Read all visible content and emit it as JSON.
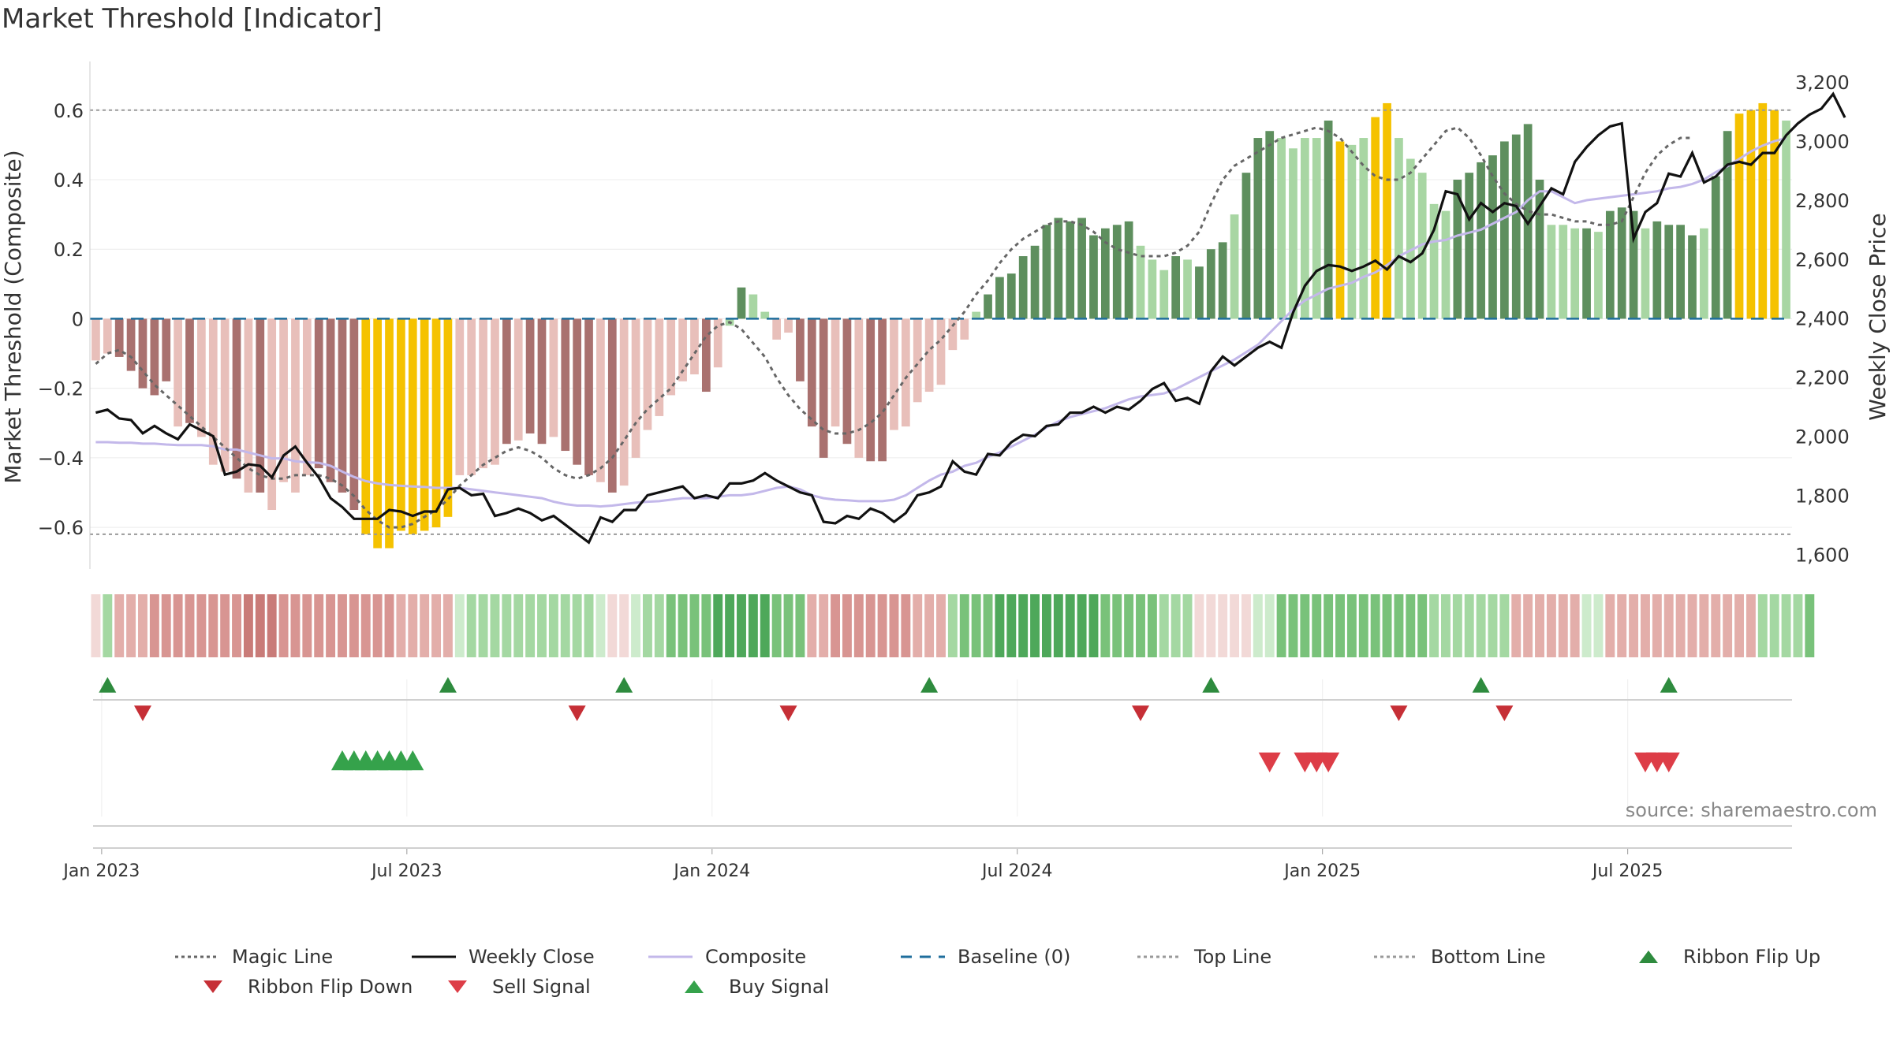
{
  "chart_data": {
    "type": "bar",
    "title": "Market Threshold [Indicator]",
    "ylabel_left": "Market Threshold (Composite)",
    "ylabel_right": "Weekly Close Price",
    "ylim_left": [
      -0.72,
      0.74
    ],
    "ylim_right": [
      1550,
      3270
    ],
    "yticks_left": [
      "0.6",
      "0.4",
      "0.2",
      "0",
      "−0.2",
      "−0.4",
      "−0.6"
    ],
    "yticks_right": [
      "3,200",
      "3,000",
      "2,800",
      "2,600",
      "2,400",
      "2,200",
      "2,000",
      "1,800",
      "1,600"
    ],
    "xticks": [
      "Jan 2023",
      "Jul 2023",
      "Jan 2024",
      "Jul 2024",
      "Jan 2025",
      "Jul 2025"
    ],
    "top_line": 0.6,
    "bottom_line": -0.62,
    "baseline": 0,
    "composite": [
      -0.12,
      -0.1,
      -0.11,
      -0.15,
      -0.2,
      -0.22,
      -0.18,
      -0.31,
      -0.3,
      -0.34,
      -0.42,
      -0.44,
      -0.46,
      -0.5,
      -0.5,
      -0.55,
      -0.47,
      -0.5,
      -0.45,
      -0.43,
      -0.47,
      -0.5,
      -0.55,
      -0.62,
      -0.66,
      -0.66,
      -0.61,
      -0.62,
      -0.61,
      -0.6,
      -0.57,
      -0.45,
      -0.45,
      -0.43,
      -0.42,
      -0.36,
      -0.35,
      -0.33,
      -0.36,
      -0.34,
      -0.38,
      -0.42,
      -0.45,
      -0.47,
      -0.5,
      -0.48,
      -0.4,
      -0.32,
      -0.28,
      -0.22,
      -0.18,
      -0.16,
      -0.21,
      -0.14,
      -0.02,
      0.09,
      0.07,
      0.02,
      -0.06,
      -0.04,
      -0.18,
      -0.31,
      -0.4,
      -0.31,
      -0.36,
      -0.4,
      -0.41,
      -0.41,
      -0.32,
      -0.31,
      -0.24,
      -0.21,
      -0.19,
      -0.09,
      -0.06,
      0.02,
      0.07,
      0.12,
      0.13,
      0.18,
      0.21,
      0.27,
      0.29,
      0.28,
      0.29,
      0.24,
      0.26,
      0.27,
      0.28,
      0.21,
      0.17,
      0.14,
      0.18,
      0.17,
      0.15,
      0.2,
      0.22,
      0.3,
      0.42,
      0.52,
      0.54,
      0.52,
      0.49,
      0.52,
      0.52,
      0.57,
      0.51,
      0.5,
      0.52,
      0.58,
      0.62,
      0.52,
      0.46,
      0.42,
      0.33,
      0.31,
      0.4,
      0.42,
      0.45,
      0.47,
      0.51,
      0.53,
      0.56,
      0.4,
      0.27,
      0.27,
      0.26,
      0.26,
      0.25,
      0.31,
      0.32,
      0.31,
      0.26,
      0.28,
      0.27,
      0.27,
      0.24,
      0.26,
      0.41,
      0.54,
      0.59,
      0.6,
      0.62,
      0.6,
      0.57
    ],
    "bar_state_legend": [
      "green-dark",
      "green-light",
      "red-dark",
      "red-light",
      "gold"
    ],
    "bar_states": [
      "rl",
      "rl",
      "rd",
      "rd",
      "rd",
      "rd",
      "rd",
      "rl",
      "rd",
      "rl",
      "rl",
      "rl",
      "rd",
      "rl",
      "rd",
      "rl",
      "rl",
      "rl",
      "rl",
      "rd",
      "rd",
      "rd",
      "rd",
      "g",
      "g",
      "g",
      "g",
      "g",
      "g",
      "g",
      "g",
      "rl",
      "rl",
      "rl",
      "rl",
      "rd",
      "rl",
      "rd",
      "rd",
      "rl",
      "rd",
      "rd",
      "rd",
      "rl",
      "rd",
      "rl",
      "rl",
      "rl",
      "rl",
      "rl",
      "rl",
      "rl",
      "rd",
      "rl",
      "gl",
      "gd",
      "gl",
      "gl",
      "rl",
      "rl",
      "rd",
      "rd",
      "rd",
      "rl",
      "rd",
      "rl",
      "rd",
      "rd",
      "rl",
      "rl",
      "rl",
      "rl",
      "rl",
      "rl",
      "rl",
      "gl",
      "gd",
      "gd",
      "gd",
      "gd",
      "gd",
      "gd",
      "gd",
      "gd",
      "gd",
      "gd",
      "gd",
      "gd",
      "gd",
      "gl",
      "gl",
      "gl",
      "gd",
      "gl",
      "gd",
      "gd",
      "gd",
      "gl",
      "gd",
      "gd",
      "gd",
      "gl",
      "gl",
      "gl",
      "gl",
      "gd",
      "g",
      "gl",
      "gl",
      "g",
      "g",
      "gl",
      "gl",
      "gl",
      "gl",
      "gl",
      "gd",
      "gd",
      "gd",
      "gd",
      "gd",
      "gd",
      "gd",
      "gd",
      "gl",
      "gl",
      "gl",
      "gd",
      "gl",
      "gd",
      "gd",
      "gd",
      "gl",
      "gd",
      "gd",
      "gd",
      "gd",
      "gl",
      "gd",
      "gd",
      "g",
      "g",
      "g",
      "g",
      "gl"
    ],
    "magic_line": [
      -0.13,
      -0.1,
      -0.09,
      -0.11,
      -0.15,
      -0.19,
      -0.22,
      -0.25,
      -0.28,
      -0.31,
      -0.34,
      -0.37,
      -0.4,
      -0.43,
      -0.45,
      -0.46,
      -0.46,
      -0.45,
      -0.45,
      -0.45,
      -0.46,
      -0.48,
      -0.51,
      -0.55,
      -0.58,
      -0.6,
      -0.6,
      -0.59,
      -0.57,
      -0.55,
      -0.52,
      -0.48,
      -0.45,
      -0.42,
      -0.4,
      -0.38,
      -0.37,
      -0.38,
      -0.4,
      -0.43,
      -0.45,
      -0.46,
      -0.45,
      -0.43,
      -0.4,
      -0.35,
      -0.3,
      -0.26,
      -0.23,
      -0.2,
      -0.15,
      -0.1,
      -0.05,
      -0.02,
      -0.01,
      -0.03,
      -0.07,
      -0.11,
      -0.17,
      -0.22,
      -0.26,
      -0.29,
      -0.32,
      -0.33,
      -0.33,
      -0.32,
      -0.3,
      -0.27,
      -0.22,
      -0.17,
      -0.13,
      -0.09,
      -0.06,
      -0.02,
      0.02,
      0.07,
      0.11,
      0.16,
      0.2,
      0.23,
      0.25,
      0.27,
      0.28,
      0.28,
      0.27,
      0.25,
      0.22,
      0.2,
      0.19,
      0.18,
      0.18,
      0.18,
      0.19,
      0.21,
      0.25,
      0.33,
      0.4,
      0.44,
      0.46,
      0.48,
      0.5,
      0.52,
      0.53,
      0.54,
      0.55,
      0.54,
      0.52,
      0.48,
      0.44,
      0.41,
      0.4,
      0.4,
      0.42,
      0.46,
      0.5,
      0.54,
      0.55,
      0.52,
      0.47,
      0.41,
      0.36,
      0.33,
      0.31,
      0.3,
      0.3,
      0.29,
      0.28,
      0.28,
      0.27,
      0.27,
      0.28,
      0.35,
      0.42,
      0.47,
      0.5,
      0.52,
      0.52
    ],
    "weekly_close": [
      2080,
      2090,
      2060,
      2055,
      2010,
      2035,
      2010,
      1990,
      2040,
      2020,
      2000,
      1870,
      1880,
      1905,
      1900,
      1860,
      1935,
      1965,
      1910,
      1860,
      1790,
      1760,
      1720,
      1720,
      1720,
      1750,
      1745,
      1730,
      1745,
      1745,
      1820,
      1825,
      1800,
      1805,
      1730,
      1740,
      1755,
      1740,
      1715,
      1730,
      1700,
      1670,
      1640,
      1725,
      1710,
      1750,
      1750,
      1800,
      1810,
      1820,
      1830,
      1790,
      1800,
      1790,
      1840,
      1840,
      1850,
      1875,
      1850,
      1830,
      1810,
      1800,
      1710,
      1705,
      1730,
      1720,
      1755,
      1740,
      1710,
      1740,
      1800,
      1810,
      1830,
      1915,
      1880,
      1870,
      1940,
      1935,
      1980,
      2005,
      2000,
      2035,
      2040,
      2080,
      2080,
      2100,
      2080,
      2100,
      2090,
      2120,
      2160,
      2180,
      2120,
      2130,
      2110,
      2220,
      2270,
      2240,
      2270,
      2300,
      2320,
      2300,
      2420,
      2510,
      2560,
      2580,
      2575,
      2560,
      2575,
      2595,
      2565,
      2610,
      2590,
      2620,
      2700,
      2830,
      2820,
      2735,
      2790,
      2760,
      2790,
      2780,
      2720,
      2780,
      2840,
      2820,
      2930,
      2980,
      3020,
      3050,
      3060,
      2670,
      2760,
      2790,
      2890,
      2880,
      2960,
      2860,
      2880,
      2920,
      2930,
      2920,
      2960,
      2960,
      3020,
      3060,
      3090,
      3110,
      3160,
      3080
    ],
    "composite_line": [
      1980,
      1980,
      1978,
      1978,
      1975,
      1975,
      1972,
      1970,
      1970,
      1970,
      1966,
      1955,
      1955,
      1945,
      1935,
      1925,
      1925,
      1915,
      1912,
      1910,
      1900,
      1880,
      1862,
      1848,
      1840,
      1835,
      1832,
      1830,
      1828,
      1825,
      1825,
      1825,
      1820,
      1815,
      1810,
      1805,
      1800,
      1795,
      1790,
      1778,
      1770,
      1765,
      1765,
      1762,
      1765,
      1770,
      1775,
      1778,
      1780,
      1785,
      1790,
      1790,
      1790,
      1795,
      1800,
      1800,
      1805,
      1815,
      1825,
      1830,
      1820,
      1800,
      1790,
      1785,
      1783,
      1780,
      1780,
      1780,
      1785,
      1800,
      1825,
      1850,
      1870,
      1880,
      1900,
      1910,
      1930,
      1945,
      1965,
      1985,
      2005,
      2030,
      2050,
      2065,
      2075,
      2085,
      2095,
      2110,
      2125,
      2135,
      2140,
      2145,
      2160,
      2180,
      2200,
      2220,
      2240,
      2260,
      2285,
      2310,
      2350,
      2390,
      2430,
      2460,
      2480,
      2500,
      2510,
      2520,
      2540,
      2555,
      2580,
      2610,
      2630,
      2650,
      2660,
      2665,
      2680,
      2690,
      2700,
      2720,
      2740,
      2760,
      2800,
      2830,
      2830,
      2810,
      2790,
      2800,
      2805,
      2810,
      2815,
      2820,
      2825,
      2830,
      2840,
      2845,
      2855,
      2870,
      2895,
      2915,
      2940,
      2965,
      2985,
      3000,
      3010
    ],
    "ribbon": [
      "r1",
      "g2",
      "r2",
      "r2",
      "r2",
      "r3",
      "r3",
      "r3",
      "r3",
      "r3",
      "r3",
      "r3",
      "r3",
      "r4",
      "r4",
      "r4",
      "r3",
      "r3",
      "r3",
      "r3",
      "r3",
      "r3",
      "r3",
      "r3",
      "r3",
      "r3",
      "r2",
      "r2",
      "r2",
      "r2",
      "r2",
      "g1",
      "g2",
      "g2",
      "g2",
      "g2",
      "g2",
      "g2",
      "g2",
      "g2",
      "g2",
      "g2",
      "g2",
      "g1",
      "r1",
      "r1",
      "g1",
      "g2",
      "g2",
      "g3",
      "g3",
      "g3",
      "g3",
      "g4",
      "g4",
      "g4",
      "g4",
      "g4",
      "g3",
      "g3",
      "g3",
      "r2",
      "r2",
      "r3",
      "r3",
      "r3",
      "r3",
      "r3",
      "r3",
      "r3",
      "r2",
      "r2",
      "r2",
      "g2",
      "g3",
      "g3",
      "g3",
      "g4",
      "g4",
      "g4",
      "g4",
      "g4",
      "g4",
      "g4",
      "g4",
      "g4",
      "g3",
      "g3",
      "g3",
      "g3",
      "g3",
      "g2",
      "g2",
      "g2",
      "r1",
      "r1",
      "r1",
      "r1",
      "r1",
      "g1",
      "g1",
      "g3",
      "g3",
      "g3",
      "g3",
      "g3",
      "g3",
      "g3",
      "g3",
      "g3",
      "g3",
      "g3",
      "g3",
      "g3",
      "g2",
      "g2",
      "g2",
      "g2",
      "g2",
      "g2",
      "g2",
      "r2",
      "r2",
      "r2",
      "r2",
      "r2",
      "r2",
      "g1",
      "g1",
      "r2",
      "r2",
      "r2",
      "r2",
      "r2",
      "r2",
      "r2",
      "r2",
      "r2",
      "r2",
      "r2",
      "r2",
      "r2",
      "g2",
      "g2",
      "g2",
      "g2",
      "g3"
    ],
    "ribbon_flip_up": [
      1,
      30,
      45,
      71,
      95,
      118,
      134
    ],
    "ribbon_flip_down": [
      4,
      41,
      59,
      89,
      111,
      120
    ],
    "buy_signal": [
      21,
      22,
      23,
      24,
      25,
      26,
      27
    ],
    "sell_signal": [
      100,
      103,
      104,
      105,
      132,
      133,
      134
    ]
  },
  "legend": [
    {
      "label": "Magic Line",
      "icon": "dotted-line",
      "color": "#666666"
    },
    {
      "label": "Weekly Close",
      "icon": "solid-line",
      "color": "#111111"
    },
    {
      "label": "Composite",
      "icon": "solid-line",
      "color": "#c3b8ea"
    },
    {
      "label": "Baseline (0)",
      "icon": "dashed-line",
      "color": "#1f6e9c"
    },
    {
      "label": "Top Line",
      "icon": "dotted-line",
      "color": "#999999"
    },
    {
      "label": "Bottom Line",
      "icon": "dotted-line",
      "color": "#999999"
    },
    {
      "label": "Ribbon Flip Up",
      "icon": "triangle-up",
      "color": "#2e8b3e"
    },
    {
      "label": "Ribbon Flip Down",
      "icon": "triangle-down",
      "color": "#c62f36"
    },
    {
      "label": "Sell Signal",
      "icon": "triangle-down",
      "color": "#dd3d47"
    },
    {
      "label": "Buy Signal",
      "icon": "triangle-up",
      "color": "#35a24b"
    }
  ],
  "source": "source: sharemaestro.com",
  "colors": {
    "green_dark": "#5e8f5e",
    "green_light": "#a8d6a3",
    "red_dark": "#a9716f",
    "red_light": "#e8bfba",
    "gold": "#f5c200",
    "axis": "#cccccc",
    "text": "#333333"
  }
}
